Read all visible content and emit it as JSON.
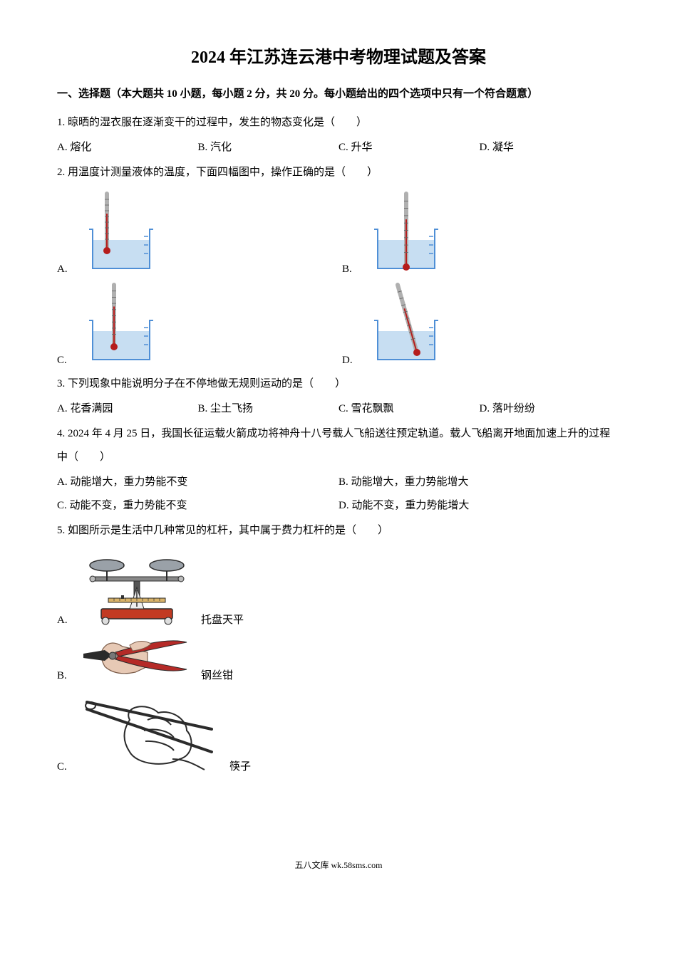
{
  "title": "2024 年江苏连云港中考物理试题及答案",
  "section1": "一、选择题（本大题共 10 小题，每小题 2 分，共 20 分。每小题给出的四个选项中只有一个符合题意）",
  "q1": {
    "stem": "1. 晾晒的湿衣服在逐渐变干的过程中，发生的物态变化是（　　）",
    "A": "A. 熔化",
    "B": "B. 汽化",
    "C": "C. 升华",
    "D": "D. 凝华"
  },
  "q2": {
    "stem": "2. 用温度计测量液体的温度，下面四幅图中，操作正确的是（　　）",
    "A": "A.",
    "B": "B.",
    "C": "C.",
    "D": "D.",
    "beaker_stroke": "#4f8fd6",
    "liquid_fill": "#c7def2",
    "glass_stroke": "#b0b0b0",
    "mercury_stroke": "#b51c1c"
  },
  "q3": {
    "stem": "3. 下列现象中能说明分子在不停地做无规则运动的是（　　）",
    "A": "A. 花香满园",
    "B": "B. 尘土飞扬",
    "C": "C. 雪花飘飘",
    "D": "D. 落叶纷纷"
  },
  "q4": {
    "stem": "4. 2024 年 4 月 25 日，我国长征运载火箭成功将神舟十八号载人飞船送往预定轨道。载人飞船离开地面加速上升的过程中（　　）",
    "A": "A. 动能增大，重力势能不变",
    "B": "B. 动能增大，重力势能增大",
    "C": "C. 动能不变，重力势能不变",
    "D": "D. 动能不变，重力势能增大"
  },
  "q5": {
    "stem": "5. 如图所示是生活中几种常见的杠杆，其中属于费力杠杆的是（　　）",
    "A": "A.",
    "B": "B.",
    "C": "C.",
    "Acap": "托盘天平",
    "Bcap": "钢丝钳",
    "Ccap": "筷子",
    "balance_stroke": "#2b2b2b",
    "balance_base": "#c23a22",
    "pan_fill": "#9aa1a8",
    "pliers_dark": "#2a2a2a",
    "pliers_red": "#b52a27",
    "hand_fill": "#e7c9b5",
    "chopstick_stroke": "#2b2b2b"
  },
  "footer": "五八文库 wk.58sms.com"
}
